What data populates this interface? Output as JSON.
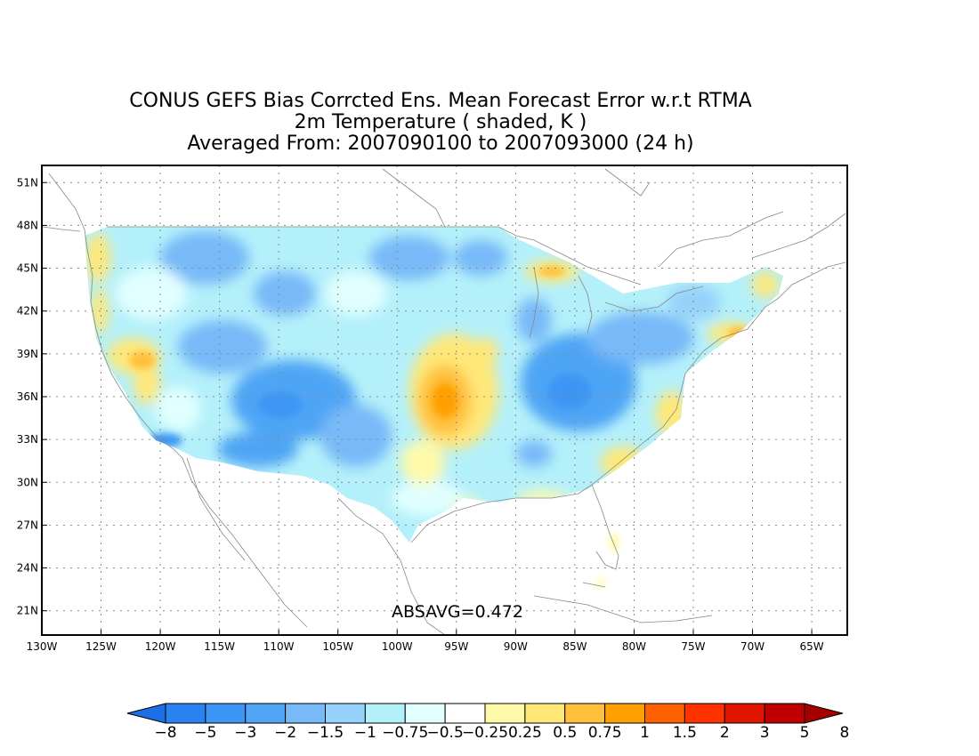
{
  "title": {
    "line1": "CONUS GEFS Bias Corrcted Ens. Mean Forecast Error w.r.t RTMA",
    "line2": "2m Temperature ( shaded, K )",
    "line3": "Averaged From: 2007090100 to 2007093000 (24 h)"
  },
  "map": {
    "lon_range": [
      -130,
      -62
    ],
    "lat_range": [
      19.3,
      52.2
    ],
    "lon_ticks": [
      {
        "value": -130,
        "label": "130W"
      },
      {
        "value": -125,
        "label": "125W"
      },
      {
        "value": -120,
        "label": "120W"
      },
      {
        "value": -115,
        "label": "115W"
      },
      {
        "value": -110,
        "label": "110W"
      },
      {
        "value": -105,
        "label": "105W"
      },
      {
        "value": -100,
        "label": "100W"
      },
      {
        "value": -95,
        "label": "95W"
      },
      {
        "value": -90,
        "label": "90W"
      },
      {
        "value": -85,
        "label": "85W"
      },
      {
        "value": -80,
        "label": "80W"
      },
      {
        "value": -75,
        "label": "75W"
      },
      {
        "value": -70,
        "label": "70W"
      },
      {
        "value": -65,
        "label": "65W"
      }
    ],
    "lat_ticks": [
      {
        "value": 21,
        "label": "21N"
      },
      {
        "value": 24,
        "label": "24N"
      },
      {
        "value": 27,
        "label": "27N"
      },
      {
        "value": 30,
        "label": "30N"
      },
      {
        "value": 33,
        "label": "33N"
      },
      {
        "value": 36,
        "label": "36N"
      },
      {
        "value": 39,
        "label": "39N"
      },
      {
        "value": 42,
        "label": "42N"
      },
      {
        "value": 45,
        "label": "45N"
      },
      {
        "value": 48,
        "label": "48N"
      },
      {
        "value": 51,
        "label": "51N"
      }
    ],
    "grid": true,
    "absavg_label": "ABSAVG=0.472"
  },
  "colorbar": {
    "colors": [
      "#1e6ee8",
      "#2a82f0",
      "#3c96f5",
      "#50a5f5",
      "#78b9f8",
      "#96d2fa",
      "#b4f0fa",
      "#e1ffff",
      "#ffffff",
      "#fffaaa",
      "#ffe878",
      "#ffc03c",
      "#ffa000",
      "#ff6000",
      "#ff3200",
      "#e11400",
      "#c00000",
      "#a50000"
    ],
    "labels": [
      "−8",
      "−5",
      "−3",
      "−2",
      "−1.5",
      "−1",
      "−0.75",
      "−0.5",
      "−0.25",
      "0.25",
      "0.5",
      "0.75",
      "1",
      "1.5",
      "2",
      "3",
      "5",
      "8"
    ]
  }
}
